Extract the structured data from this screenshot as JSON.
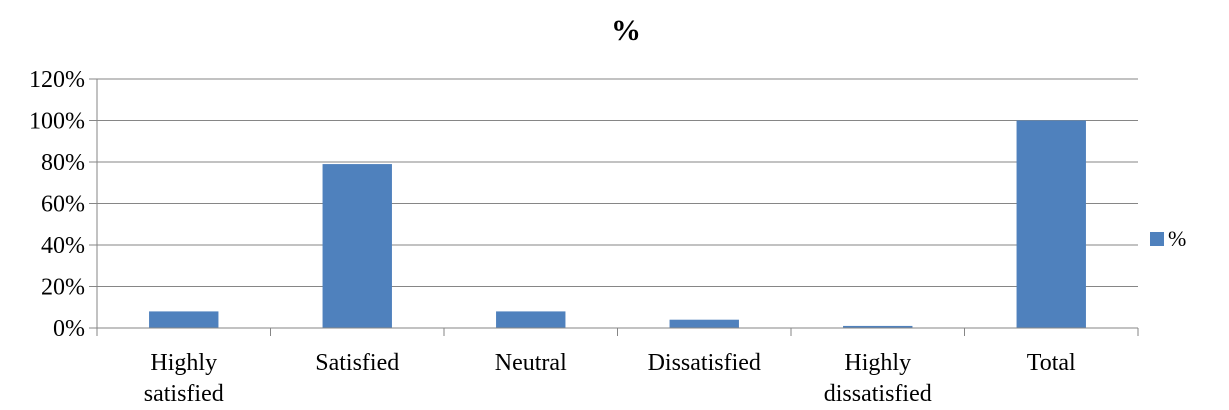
{
  "chart_data": {
    "type": "bar",
    "title": "%",
    "categories": [
      "Highly satisfied",
      "Satisfied",
      "Neutral",
      "Dissatisfied",
      "Highly dissatisfied",
      "Total"
    ],
    "category_lines": [
      [
        "Highly",
        "satisfied"
      ],
      [
        "Satisfied"
      ],
      [
        "Neutral"
      ],
      [
        "Dissatisfied"
      ],
      [
        "Highly",
        "dissatisfied"
      ],
      [
        "Total"
      ]
    ],
    "series": [
      {
        "name": "%",
        "values": [
          0.08,
          0.79,
          0.08,
          0.04,
          0.01,
          1.0
        ]
      }
    ],
    "ylim": [
      0,
      1.2
    ],
    "yticks": [
      0,
      0.2,
      0.4,
      0.6,
      0.8,
      1.0,
      1.2
    ],
    "ytick_labels": [
      "0%",
      "20%",
      "40%",
      "60%",
      "80%",
      "100%",
      "120%"
    ],
    "xlabel": "",
    "ylabel": "",
    "grid": true,
    "legend_position": "right",
    "bar_color": "#4f81bd"
  }
}
